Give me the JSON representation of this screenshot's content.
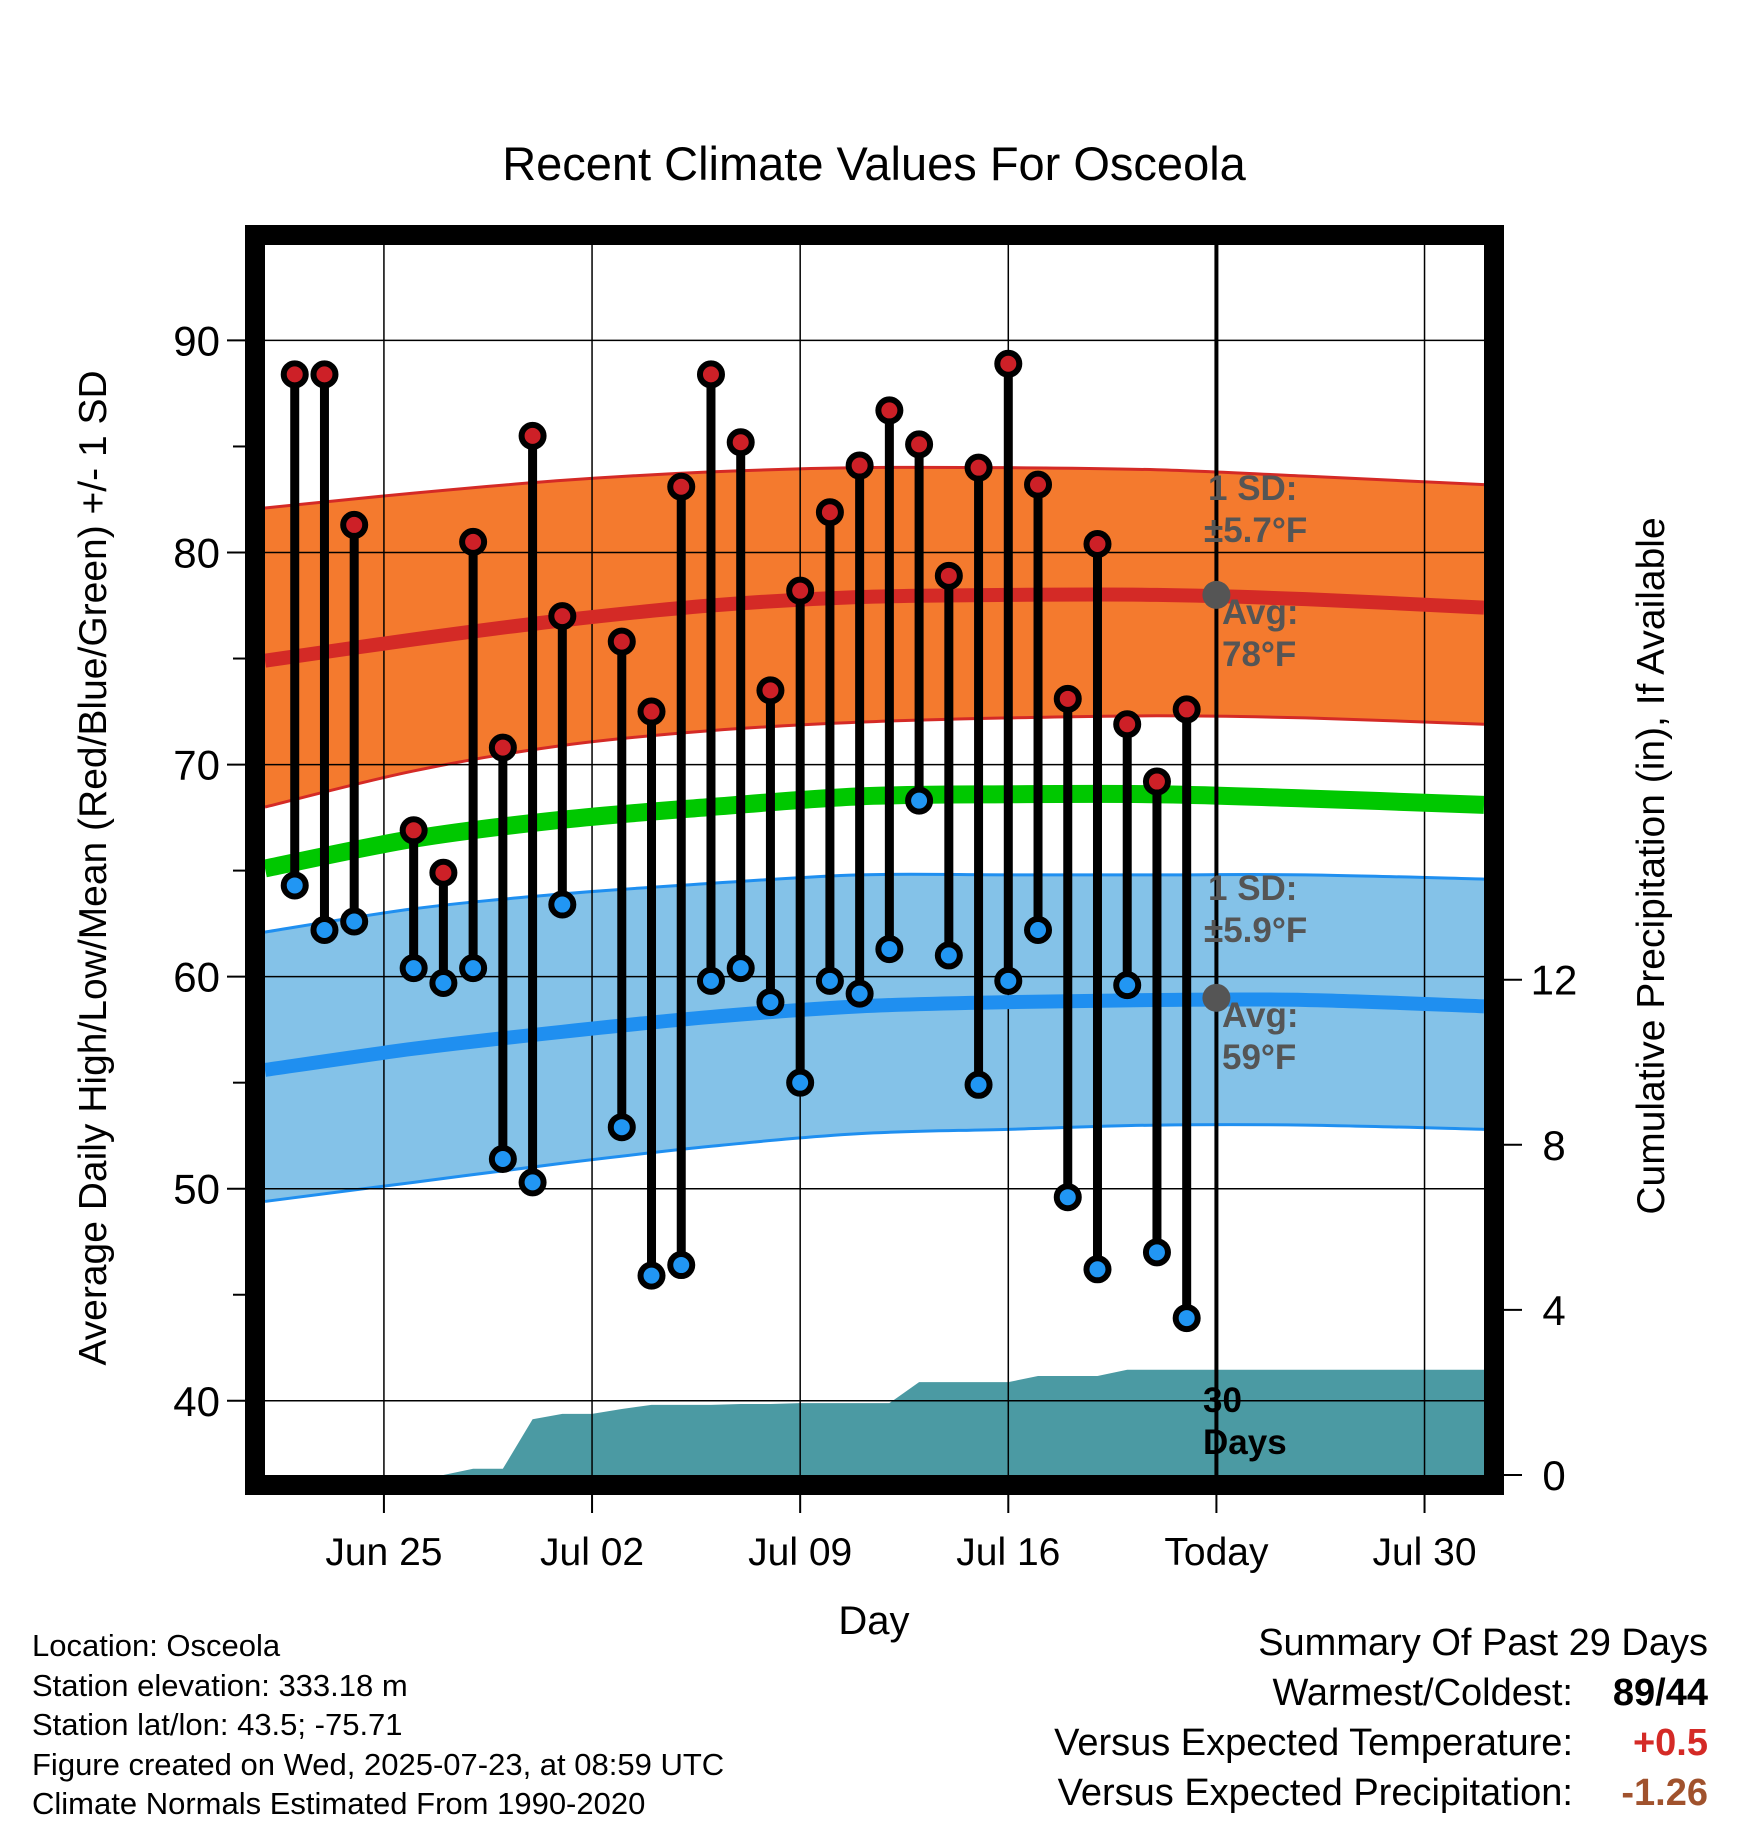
{
  "chart_data": {
    "type": "line",
    "title": "Recent Climate Values For Osceola",
    "xlabel": "Day",
    "ylabel": "Average Daily High/Low/Mean (Red/Blue/Green) +/- 1 SD",
    "y2label": "Cumulative Precipitation (in), If Available",
    "x_tick_labels": [
      "Jun 25",
      "Jul 02",
      "Jul 09",
      "Jul 16",
      "Today",
      "Jul 30"
    ],
    "x_range": [
      "2025-06-21",
      "2025-08-01"
    ],
    "today": "2025-07-23",
    "ylim": [
      36.5,
      94.5
    ],
    "yticks": [
      40,
      50,
      60,
      70,
      80,
      90
    ],
    "y2lim": [
      0,
      29.8
    ],
    "y2ticks": [
      0,
      4,
      8,
      12
    ],
    "grid": true,
    "dates": [
      "2025-06-22",
      "2025-06-23",
      "2025-06-24",
      "2025-06-25",
      "2025-06-26",
      "2025-06-27",
      "2025-06-28",
      "2025-06-29",
      "2025-06-30",
      "2025-07-01",
      "2025-07-02",
      "2025-07-03",
      "2025-07-04",
      "2025-07-05",
      "2025-07-06",
      "2025-07-07",
      "2025-07-08",
      "2025-07-09",
      "2025-07-10",
      "2025-07-11",
      "2025-07-12",
      "2025-07-13",
      "2025-07-14",
      "2025-07-15",
      "2025-07-16",
      "2025-07-17",
      "2025-07-18",
      "2025-07-19",
      "2025-07-20",
      "2025-07-21",
      "2025-07-22"
    ],
    "high": [
      88.4,
      88.4,
      81.3,
      null,
      66.9,
      64.9,
      80.5,
      70.8,
      85.5,
      77.0,
      null,
      75.8,
      72.5,
      83.1,
      88.4,
      85.2,
      73.5,
      78.2,
      81.9,
      84.1,
      86.7,
      85.1,
      78.9,
      84.0,
      88.9,
      83.2,
      73.1,
      80.4,
      71.9,
      69.2,
      72.6
    ],
    "low": [
      64.3,
      62.2,
      62.6,
      null,
      60.4,
      59.7,
      60.4,
      51.4,
      50.3,
      63.4,
      null,
      52.9,
      45.9,
      46.4,
      59.8,
      60.4,
      58.8,
      55.0,
      59.8,
      59.2,
      61.3,
      68.3,
      61.0,
      54.9,
      59.8,
      62.2,
      49.6,
      46.2,
      59.6,
      47.0,
      43.9
    ],
    "normals": {
      "dates": [
        "2025-06-21",
        "2025-06-26",
        "2025-07-01",
        "2025-07-06",
        "2025-07-11",
        "2025-07-16",
        "2025-07-21",
        "2025-07-26",
        "2025-08-01"
      ],
      "high_avg": [
        74.9,
        75.9,
        76.8,
        77.5,
        77.9,
        78.0,
        78.0,
        77.8,
        77.4
      ],
      "high_minus_sd": [
        68.0,
        69.7,
        70.9,
        71.6,
        72.0,
        72.2,
        72.3,
        72.2,
        71.9
      ],
      "high_plus_sd": [
        82.1,
        82.8,
        83.4,
        83.8,
        84.0,
        84.0,
        83.9,
        83.6,
        83.2
      ],
      "mean": [
        65.1,
        66.5,
        67.4,
        68.0,
        68.5,
        68.6,
        68.6,
        68.4,
        68.1
      ],
      "low_avg": [
        55.6,
        56.6,
        57.4,
        58.1,
        58.6,
        58.8,
        58.9,
        58.9,
        58.6
      ],
      "low_minus_sd": [
        49.4,
        50.3,
        51.2,
        52.0,
        52.6,
        52.8,
        53.0,
        53.0,
        52.8
      ],
      "low_plus_sd": [
        62.1,
        63.2,
        63.9,
        64.4,
        64.8,
        64.8,
        64.8,
        64.8,
        64.6
      ]
    },
    "precip_cumulative": {
      "dates": [
        "2025-06-26",
        "2025-06-27",
        "2025-06-28",
        "2025-06-29",
        "2025-06-30",
        "2025-07-01",
        "2025-07-02",
        "2025-07-03",
        "2025-07-04",
        "2025-07-05",
        "2025-07-06",
        "2025-07-07",
        "2025-07-08",
        "2025-07-09",
        "2025-07-10",
        "2025-07-11",
        "2025-07-12",
        "2025-07-13",
        "2025-07-14",
        "2025-07-15",
        "2025-07-16",
        "2025-07-17",
        "2025-07-18",
        "2025-07-19",
        "2025-07-20",
        "2025-07-21",
        "2025-07-22",
        "2025-07-23",
        "2025-08-01"
      ],
      "values": [
        0.0,
        0.0,
        0.15,
        0.15,
        1.35,
        1.48,
        1.48,
        1.6,
        1.7,
        1.7,
        1.7,
        1.72,
        1.72,
        1.74,
        1.74,
        1.74,
        1.74,
        2.25,
        2.25,
        2.25,
        2.25,
        2.4,
        2.4,
        2.4,
        2.55,
        2.55,
        2.55,
        2.55,
        2.55
      ]
    },
    "annotations": {
      "high_sd": {
        "label": "1 SD:",
        "value": "±5.7°F"
      },
      "high_avg": {
        "label": "Avg:",
        "value": "78°F"
      },
      "low_sd": {
        "label": "1 SD:",
        "value": "±5.9°F"
      },
      "low_avg": {
        "label": "Avg:",
        "value": "59°F"
      },
      "window": {
        "line1": "30",
        "line2": "Days"
      }
    },
    "colors": {
      "high_band": "#f47a2e",
      "high_line": "#d42a26",
      "low_band": "#84c2e8",
      "low_line": "#1f8ff0",
      "mean_line": "#00c800",
      "precip": "#4b9aa3",
      "high_dot": "#cd2027",
      "low_dot": "#2196f3",
      "annotation": "#555555"
    }
  },
  "info": {
    "location": "Location: Osceola",
    "elevation": "Station elevation: 333.18 m",
    "latlon": "Station lat/lon: 43.5; -75.71",
    "created": "Figure created on Wed, 2025-07-23, at 08:59 UTC",
    "normals": "Climate Normals Estimated From 1990-2020"
  },
  "summary": {
    "title": "Summary Of Past 29 Days",
    "warm_label": "Warmest/Coldest:",
    "warm_value": "89/44",
    "temp_label": "Versus Expected Temperature:",
    "temp_value": "+0.5",
    "temp_color": "#d42a26",
    "precip_label": "Versus Expected Precipitation:",
    "precip_value": "-1.26",
    "precip_color": "#a0522d"
  }
}
